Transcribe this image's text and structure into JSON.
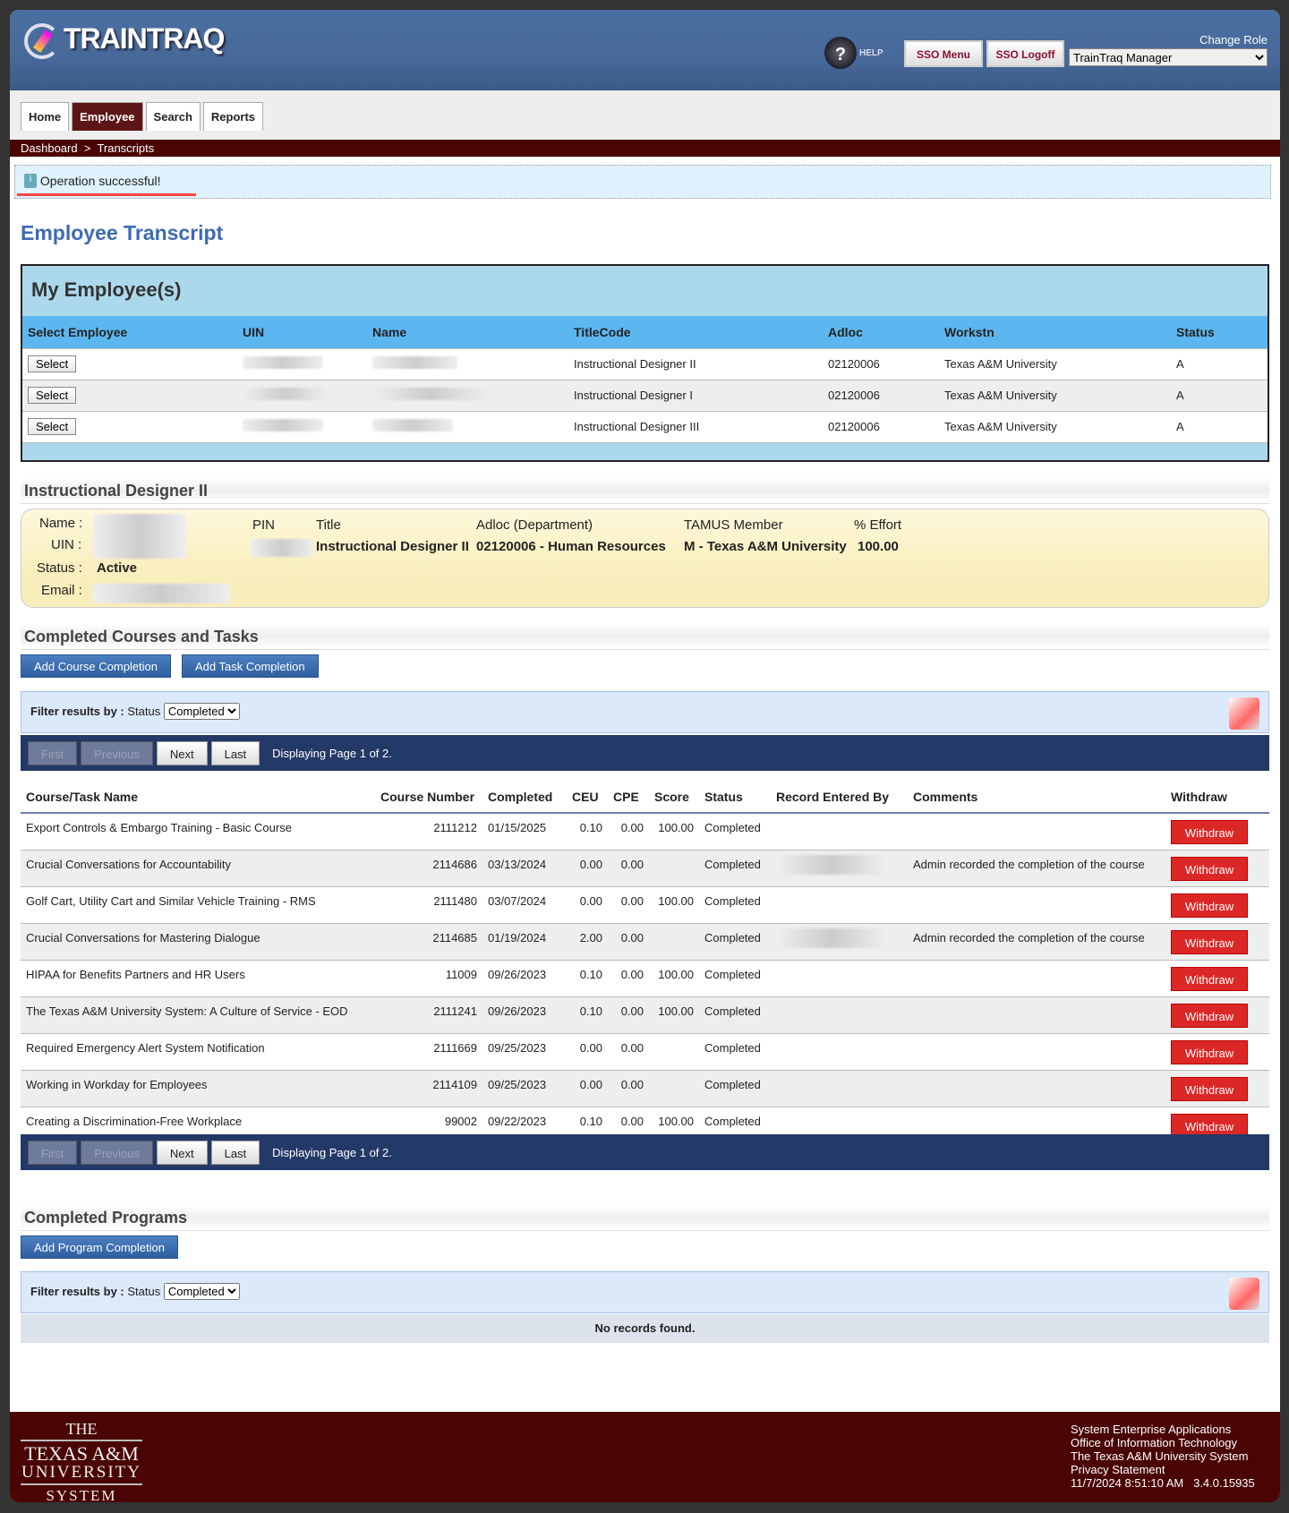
{
  "header": {
    "logo": "TRAINTRAQ",
    "help": "HELP",
    "sso_menu": "SSO Menu",
    "sso_logoff": "SSO Logoff",
    "change_role_label": "Change Role",
    "role": "TrainTraq Manager"
  },
  "tabs": [
    {
      "label": "Home"
    },
    {
      "label": "Employee",
      "active": true
    },
    {
      "label": "Search"
    },
    {
      "label": "Reports"
    }
  ],
  "breadcrumb": [
    "Dashboard",
    ">",
    "Transcripts"
  ],
  "message": "Operation successful!",
  "page_title": "Employee Transcript",
  "my_employees": {
    "title": "My Employee(s)",
    "columns": [
      "Select Employee",
      "UIN",
      "Name",
      "TitleCode",
      "Adloc",
      "Workstn",
      "Status"
    ],
    "select_label": "Select",
    "rows": [
      {
        "title": "Instructional Designer II",
        "adloc": "02120006",
        "workstn": "Texas A&M University",
        "status": "A"
      },
      {
        "title": "Instructional Designer I",
        "adloc": "02120006",
        "workstn": "Texas A&M University",
        "status": "A"
      },
      {
        "title": "Instructional Designer III",
        "adloc": "02120006",
        "workstn": "Texas A&M University",
        "status": "A"
      }
    ]
  },
  "details": {
    "title": "Instructional Designer II",
    "name_label": "Name :",
    "uin_label": "UIN :",
    "status_label": "Status :",
    "status": "Active",
    "email_label": "Email :",
    "pin_label": "PIN",
    "title_label": "Title",
    "adloc_label": "Adloc (Department)",
    "adloc": "02120006 - Human Resources",
    "member_label": "TAMUS Member",
    "member": "M - Texas A&M University",
    "effort_label": "% Effort",
    "effort": "100.00"
  },
  "courses": {
    "title": "Completed Courses and Tasks",
    "add_course": "Add Course Completion",
    "add_task": "Add Task Completion",
    "filter_label": "Filter results by :",
    "filter_status": "Status",
    "filter_value": "Completed",
    "pager": {
      "first": "First",
      "previous": "Previous",
      "next": "Next",
      "last": "Last",
      "info": "Displaying Page 1 of 2."
    },
    "columns": [
      "Course/Task Name",
      "Course Number",
      "Completed",
      "CEU",
      "CPE",
      "Score",
      "Status",
      "Record Entered By",
      "Comments",
      "Withdraw"
    ],
    "withdraw_label": "Withdraw",
    "rows": [
      {
        "name": "Export Controls & Embargo Training - Basic Course",
        "number": "2111212",
        "completed": "01/15/2025",
        "ceu": "0.10",
        "cpe": "0.00",
        "score": "100.00",
        "status": "Completed",
        "comments": ""
      },
      {
        "name": "Crucial Conversations for Accountability",
        "number": "2114686",
        "completed": "03/13/2024",
        "ceu": "0.00",
        "cpe": "0.00",
        "score": "",
        "status": "Completed",
        "comments": "Admin recorded the completion of the course",
        "entered": true
      },
      {
        "name": "Golf Cart, Utility Cart and Similar Vehicle Training - RMS",
        "number": "2111480",
        "completed": "03/07/2024",
        "ceu": "0.00",
        "cpe": "0.00",
        "score": "100.00",
        "status": "Completed",
        "comments": ""
      },
      {
        "name": "Crucial Conversations for Mastering Dialogue",
        "number": "2114685",
        "completed": "01/19/2024",
        "ceu": "2.00",
        "cpe": "0.00",
        "score": "",
        "status": "Completed",
        "comments": "Admin recorded the completion of the course",
        "entered": true
      },
      {
        "name": "HIPAA for Benefits Partners and HR Users",
        "number": "11009",
        "completed": "09/26/2023",
        "ceu": "0.10",
        "cpe": "0.00",
        "score": "100.00",
        "status": "Completed",
        "comments": ""
      },
      {
        "name": "The Texas A&M University System: A Culture of Service - EOD",
        "number": "2111241",
        "completed": "09/26/2023",
        "ceu": "0.10",
        "cpe": "0.00",
        "score": "100.00",
        "status": "Completed",
        "comments": ""
      },
      {
        "name": "Required Emergency Alert System Notification",
        "number": "2111669",
        "completed": "09/25/2023",
        "ceu": "0.00",
        "cpe": "0.00",
        "score": "",
        "status": "Completed",
        "comments": ""
      },
      {
        "name": "Working in Workday for Employees",
        "number": "2114109",
        "completed": "09/25/2023",
        "ceu": "0.00",
        "cpe": "0.00",
        "score": "",
        "status": "Completed",
        "comments": ""
      },
      {
        "name": "Creating a Discrimination-Free Workplace",
        "number": "99002",
        "completed": "09/22/2023",
        "ceu": "0.10",
        "cpe": "0.00",
        "score": "100.00",
        "status": "Completed",
        "comments": ""
      }
    ]
  },
  "programs": {
    "title": "Completed Programs",
    "add_program": "Add Program Completion",
    "filter_label": "Filter results by :",
    "filter_status": "Status",
    "filter_value": "Completed",
    "no_records": "No records found."
  },
  "footer": {
    "logo": [
      "THE",
      "TEXAS A&M",
      "UNIVERSITY",
      "SYSTEM"
    ],
    "lines": [
      "System Enterprise Applications",
      "Office of Information Technology",
      "The Texas A&M University System",
      "Privacy Statement"
    ],
    "timestamp": "11/7/2024 8:51:10 AM",
    "version": "3.4.0.15935"
  }
}
